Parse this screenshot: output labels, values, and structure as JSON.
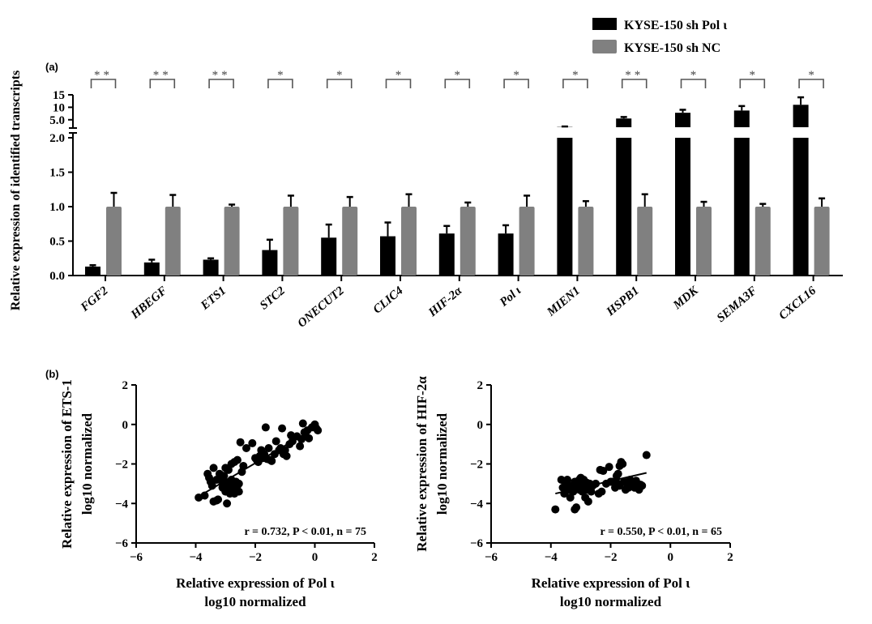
{
  "chart_data": [
    {
      "type": "bar",
      "panel_label": "(a)",
      "ylabel": "Relative expression of identified transcripts",
      "xlabel": "",
      "categories": [
        "FGF2",
        "HBEGF",
        "ETS1",
        "STC2",
        "ONECUT2",
        "CLIC4",
        "HIF-2α",
        "Pol ι",
        "MIEN1",
        "HSPB1",
        "MDK",
        "SEMA3F",
        "CXCL16"
      ],
      "series": [
        {
          "name": "KYSE-150 sh Pol ι",
          "color": "#000000",
          "values": [
            0.13,
            0.19,
            0.23,
            0.37,
            0.55,
            0.57,
            0.61,
            0.61,
            2.1,
            5.5,
            7.8,
            8.7,
            11.0
          ],
          "errors": [
            0.02,
            0.04,
            0.02,
            0.15,
            0.19,
            0.2,
            0.11,
            0.12,
            0.2,
            0.6,
            1.2,
            1.8,
            3.0
          ]
        },
        {
          "name": "KYSE-150 sh NC",
          "color": "#808080",
          "values": [
            1.0,
            1.0,
            1.0,
            1.0,
            1.0,
            1.0,
            1.0,
            1.0,
            1.0,
            1.0,
            1.0,
            1.0,
            1.0
          ],
          "errors": [
            0.2,
            0.17,
            0.03,
            0.16,
            0.14,
            0.18,
            0.06,
            0.16,
            0.08,
            0.18,
            0.07,
            0.04,
            0.12
          ]
        }
      ],
      "significance": [
        "**",
        "**",
        "**",
        "*",
        "*",
        "*",
        "*",
        "*",
        "*",
        "**",
        "*",
        "*",
        "*"
      ],
      "yaxis_lower": {
        "range": [
          0,
          2.0
        ],
        "ticks": [
          "0.0",
          "0.5",
          "1.0",
          "1.5",
          "2.0"
        ]
      },
      "yaxis_upper": {
        "range": [
          2.0,
          15
        ],
        "ticks": [
          "5.0",
          "10",
          "15"
        ]
      },
      "axis_break": true,
      "legend_placement": "top-right",
      "grid": false
    },
    {
      "type": "scatter",
      "panel_label": "(b)",
      "xlabel": "Relative expression of Pol ι",
      "xlabel_sub": "log10 normalized",
      "ylabel": "Relative expression of ETS-1",
      "ylabel_sub": "log10 normalized",
      "xlim": [
        -6,
        2
      ],
      "ylim": [
        -6,
        2
      ],
      "xticks": [
        "−6",
        "−4",
        "−2",
        "0",
        "2"
      ],
      "yticks": [
        "2",
        "0",
        "−2",
        "−4",
        "−6"
      ],
      "annotation": "r = 0.732, P < 0.01, n = 75",
      "fit_line": {
        "x": [
          -3.85,
          -0.3
        ],
        "y": [
          -3.6,
          -0.45
        ]
      },
      "points": [
        [
          -3.9,
          -3.7
        ],
        [
          -3.7,
          -3.6
        ],
        [
          -3.6,
          -2.5
        ],
        [
          -3.55,
          -2.7
        ],
        [
          -3.5,
          -2.9
        ],
        [
          -3.45,
          -3.1
        ],
        [
          -3.4,
          -2.2
        ],
        [
          -3.4,
          -3.9
        ],
        [
          -3.3,
          -2.8
        ],
        [
          -3.3,
          -3.85
        ],
        [
          -3.25,
          -3.8
        ],
        [
          -3.2,
          -2.5
        ],
        [
          -3.15,
          -2.7
        ],
        [
          -3.1,
          -3.0
        ],
        [
          -3.1,
          -3.2
        ],
        [
          -3.05,
          -2.6
        ],
        [
          -3.0,
          -2.2
        ],
        [
          -3.0,
          -2.9
        ],
        [
          -3.0,
          -3.4
        ],
        [
          -2.95,
          -4.0
        ],
        [
          -2.9,
          -2.3
        ],
        [
          -2.9,
          -3.0
        ],
        [
          -2.85,
          -3.2
        ],
        [
          -2.85,
          -3.5
        ],
        [
          -2.8,
          -2.0
        ],
        [
          -2.8,
          -2.8
        ],
        [
          -2.75,
          -3.1
        ],
        [
          -2.75,
          -3.3
        ],
        [
          -2.7,
          -1.9
        ],
        [
          -2.7,
          -3.5
        ],
        [
          -2.65,
          -2.9
        ],
        [
          -2.6,
          -1.8
        ],
        [
          -2.6,
          -3.1
        ],
        [
          -2.55,
          -3.0
        ],
        [
          -2.55,
          -3.4
        ],
        [
          -2.5,
          -0.9
        ],
        [
          -2.45,
          -2.4
        ],
        [
          -2.4,
          -2.1
        ],
        [
          -2.3,
          -1.2
        ],
        [
          -2.1,
          -0.95
        ],
        [
          -2.0,
          -1.7
        ],
        [
          -1.95,
          -1.8
        ],
        [
          -1.9,
          -1.9
        ],
        [
          -1.85,
          -1.6
        ],
        [
          -1.8,
          -1.3
        ],
        [
          -1.75,
          -1.7
        ],
        [
          -1.7,
          -1.5
        ],
        [
          -1.65,
          -0.15
        ],
        [
          -1.6,
          -1.75
        ],
        [
          -1.55,
          -1.2
        ],
        [
          -1.5,
          -1.8
        ],
        [
          -1.45,
          -1.85
        ],
        [
          -1.35,
          -1.5
        ],
        [
          -1.3,
          -0.85
        ],
        [
          -1.2,
          -1.3
        ],
        [
          -1.15,
          -1.2
        ],
        [
          -1.1,
          -0.2
        ],
        [
          -1.05,
          -1.5
        ],
        [
          -1.0,
          -1.3
        ],
        [
          -0.95,
          -1.6
        ],
        [
          -0.85,
          -1.0
        ],
        [
          -0.8,
          -0.55
        ],
        [
          -0.75,
          -0.85
        ],
        [
          -0.6,
          -0.6
        ],
        [
          -0.5,
          -1.1
        ],
        [
          -0.45,
          -0.75
        ],
        [
          -0.4,
          0.05
        ],
        [
          -0.35,
          -0.4
        ],
        [
          -0.3,
          -0.6
        ],
        [
          -0.25,
          -0.3
        ],
        [
          -0.2,
          -0.7
        ],
        [
          -0.1,
          -0.15
        ],
        [
          0.0,
          0.0
        ],
        [
          0.05,
          -0.2
        ],
        [
          0.1,
          -0.3
        ]
      ]
    },
    {
      "type": "scatter",
      "xlabel": "Relative expression of Pol ι",
      "xlabel_sub": "log10 normalized",
      "ylabel": "Relative expression of HIF-2α",
      "ylabel_sub": "log10 normalized",
      "xlim": [
        -6,
        2
      ],
      "ylim": [
        -6,
        2
      ],
      "xticks": [
        "−6",
        "−4",
        "−2",
        "0",
        "2"
      ],
      "yticks": [
        "2",
        "0",
        "−2",
        "−4",
        "−6"
      ],
      "annotation": "r = 0.550,  P < 0.01, n = 65",
      "fit_line": {
        "x": [
          -3.85,
          -0.8
        ],
        "y": [
          -3.5,
          -2.45
        ]
      },
      "points": [
        [
          -3.85,
          -4.3
        ],
        [
          -3.65,
          -2.8
        ],
        [
          -3.6,
          -3.2
        ],
        [
          -3.55,
          -3.5
        ],
        [
          -3.5,
          -3.0
        ],
        [
          -3.45,
          -2.8
        ],
        [
          -3.4,
          -3.3
        ],
        [
          -3.35,
          -3.7
        ],
        [
          -3.3,
          -3.1
        ],
        [
          -3.25,
          -3.4
        ],
        [
          -3.2,
          -4.3
        ],
        [
          -3.2,
          -2.9
        ],
        [
          -3.15,
          -3.2
        ],
        [
          -3.15,
          -4.2
        ],
        [
          -3.1,
          -3.0
        ],
        [
          -3.05,
          -3.3
        ],
        [
          -3.05,
          -2.8
        ],
        [
          -3.0,
          -3.1
        ],
        [
          -3.0,
          -2.7
        ],
        [
          -2.95,
          -3.4
        ],
        [
          -2.9,
          -3.0
        ],
        [
          -2.9,
          -2.8
        ],
        [
          -2.85,
          -3.7
        ],
        [
          -2.85,
          -3.2
        ],
        [
          -2.8,
          -3.3
        ],
        [
          -2.75,
          -3.9
        ],
        [
          -2.7,
          -3.0
        ],
        [
          -2.7,
          -3.2
        ],
        [
          -2.65,
          -3.4
        ],
        [
          -2.6,
          -3.1
        ],
        [
          -2.5,
          -3.0
        ],
        [
          -2.4,
          -3.5
        ],
        [
          -2.35,
          -2.3
        ],
        [
          -2.3,
          -3.4
        ],
        [
          -2.25,
          -2.35
        ],
        [
          -2.15,
          -3.0
        ],
        [
          -2.05,
          -2.15
        ],
        [
          -2.0,
          -2.9
        ],
        [
          -1.95,
          -2.9
        ],
        [
          -1.85,
          -3.2
        ],
        [
          -1.8,
          -2.6
        ],
        [
          -1.75,
          -2.5
        ],
        [
          -1.75,
          -3.0
        ],
        [
          -1.7,
          -2.1
        ],
        [
          -1.7,
          -3.1
        ],
        [
          -1.65,
          -1.9
        ],
        [
          -1.6,
          -2.0
        ],
        [
          -1.55,
          -2.9
        ],
        [
          -1.5,
          -3.3
        ],
        [
          -1.45,
          -3.0
        ],
        [
          -1.4,
          -3.2
        ],
        [
          -1.35,
          -2.8
        ],
        [
          -1.3,
          -3.1
        ],
        [
          -1.25,
          -2.9
        ],
        [
          -1.2,
          -3.2
        ],
        [
          -1.15,
          -2.85
        ],
        [
          -1.1,
          -3.0
        ],
        [
          -1.05,
          -3.3
        ],
        [
          -1.0,
          -3.05
        ],
        [
          -0.95,
          -3.1
        ],
        [
          -0.8,
          -1.55
        ],
        [
          -3.0,
          -3.05
        ],
        [
          -2.95,
          -2.95
        ],
        [
          -3.1,
          -3.15
        ],
        [
          -2.8,
          -2.95
        ]
      ]
    }
  ]
}
